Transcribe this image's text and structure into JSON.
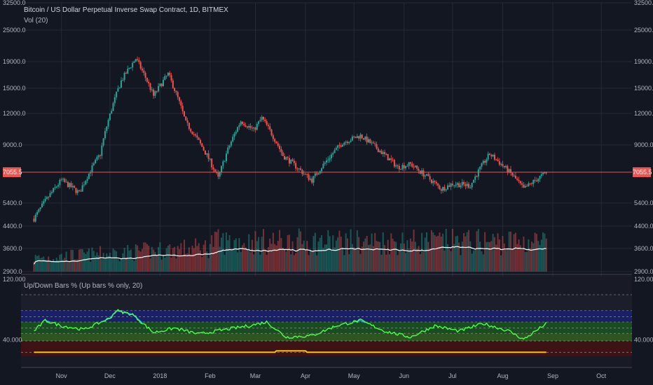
{
  "header": {
    "title": "Bitcoin / US Dollar Perpetual Inverse Swap Contract, 1D, BITMEX",
    "volume_label": "Vol (20)",
    "indicator_label": "Up/Down Bars % (Up bars % only, 20)"
  },
  "current_price": "7055.5",
  "price_axis": {
    "labels": [
      "32500.0",
      "25000.0",
      "19000.0",
      "15000.0",
      "12000.0",
      "9000.0",
      "5400.0",
      "4400.0",
      "3600.0",
      "2900.0"
    ],
    "values": [
      32500,
      25000,
      19000,
      15000,
      12000,
      9000,
      5400,
      4400,
      3600,
      2900
    ]
  },
  "indicator_axis": {
    "labels": [
      "120.000",
      "40.000"
    ],
    "values": [
      120,
      40
    ]
  },
  "time_axis": {
    "labels": [
      "Nov",
      "Dec",
      "2018",
      "Feb",
      "Mar",
      "Apr",
      "May",
      "Jun",
      "Jul",
      "Aug",
      "Sep",
      "Oct"
    ]
  },
  "colors": {
    "background": "#131722",
    "grid": "#252a37",
    "up": "#26a69a",
    "down": "#ef5350",
    "price_line": "#ef5350",
    "volume_ma": "#ffffff",
    "indicator_line_green": "#4cff4c",
    "indicator_line_blue": "#29b6f6",
    "band_blue": "#1a237e",
    "band_green": "#1b5e20",
    "band_olive": "#33691e",
    "band_red": "#4a1212",
    "yellow_line": "#ffc107"
  },
  "chart_data": [
    {
      "type": "candlestick",
      "title": "Bitcoin / US Dollar Perpetual Inverse Swap Contract, 1D, BITMEX",
      "scale": "log",
      "ylim": [
        2900,
        32500
      ],
      "key_points": [
        {
          "date": "2017-10-15",
          "close": 4700
        },
        {
          "date": "2017-11-01",
          "close": 6600
        },
        {
          "date": "2017-11-12",
          "close": 5900
        },
        {
          "date": "2017-11-25",
          "close": 8300
        },
        {
          "date": "2017-12-08",
          "close": 16000
        },
        {
          "date": "2017-12-17",
          "close": 19500
        },
        {
          "date": "2017-12-28",
          "close": 14000
        },
        {
          "date": "2018-01-06",
          "close": 17000
        },
        {
          "date": "2018-01-17",
          "close": 11000
        },
        {
          "date": "2018-02-06",
          "close": 6700
        },
        {
          "date": "2018-02-20",
          "close": 11200
        },
        {
          "date": "2018-02-28",
          "close": 10300
        },
        {
          "date": "2018-03-05",
          "close": 11500
        },
        {
          "date": "2018-03-18",
          "close": 8200
        },
        {
          "date": "2018-04-01",
          "close": 6900
        },
        {
          "date": "2018-04-05",
          "close": 6600
        },
        {
          "date": "2018-04-24",
          "close": 9200
        },
        {
          "date": "2018-05-05",
          "close": 9800
        },
        {
          "date": "2018-05-28",
          "close": 7400
        },
        {
          "date": "2018-06-05",
          "close": 7600
        },
        {
          "date": "2018-06-24",
          "close": 6100
        },
        {
          "date": "2018-07-01",
          "close": 6400
        },
        {
          "date": "2018-07-12",
          "close": 6300
        },
        {
          "date": "2018-07-24",
          "close": 8300
        },
        {
          "date": "2018-08-07",
          "close": 6900
        },
        {
          "date": "2018-08-14",
          "close": 6100
        },
        {
          "date": "2018-08-28",
          "close": 7055.5
        }
      ]
    },
    {
      "type": "bar",
      "series_name": "Vol (20)",
      "description": "volume bars with white 20-period moving average; average rises from low levels to a peak near late March, flat through spring, rising again in July/August"
    },
    {
      "type": "line",
      "title": "Up/Down Bars % (Up bars % only, 20)",
      "ylim": [
        0,
        120
      ],
      "bands": [
        {
          "from": 60,
          "to": 75,
          "color": "band_blue"
        },
        {
          "from": 45,
          "to": 60,
          "color": "band_green"
        },
        {
          "from": 35,
          "to": 45,
          "color": "band_olive"
        },
        {
          "from": 15,
          "to": 35,
          "color": "band_red"
        }
      ],
      "key_points": [
        {
          "date": "2017-10-15",
          "value": 48
        },
        {
          "date": "2017-10-22",
          "value": 62
        },
        {
          "date": "2017-11-01",
          "value": 55
        },
        {
          "date": "2017-11-15",
          "value": 50
        },
        {
          "date": "2017-12-01",
          "value": 65
        },
        {
          "date": "2017-12-05",
          "value": 75
        },
        {
          "date": "2017-12-15",
          "value": 70
        },
        {
          "date": "2017-12-28",
          "value": 46
        },
        {
          "date": "2018-01-10",
          "value": 52
        },
        {
          "date": "2018-01-25",
          "value": 44
        },
        {
          "date": "2018-02-10",
          "value": 50
        },
        {
          "date": "2018-02-25",
          "value": 55
        },
        {
          "date": "2018-03-08",
          "value": 60
        },
        {
          "date": "2018-03-20",
          "value": 40
        },
        {
          "date": "2018-04-05",
          "value": 42
        },
        {
          "date": "2018-04-20",
          "value": 55
        },
        {
          "date": "2018-05-05",
          "value": 62
        },
        {
          "date": "2018-05-20",
          "value": 48
        },
        {
          "date": "2018-06-05",
          "value": 40
        },
        {
          "date": "2018-06-20",
          "value": 55
        },
        {
          "date": "2018-07-05",
          "value": 48
        },
        {
          "date": "2018-07-20",
          "value": 58
        },
        {
          "date": "2018-08-05",
          "value": 48
        },
        {
          "date": "2018-08-14",
          "value": 37
        },
        {
          "date": "2018-08-28",
          "value": 58
        }
      ],
      "yellow_line": {
        "value": 20,
        "bump_value": 22,
        "bump_from": "2018-03-14",
        "bump_to": "2018-04-01"
      }
    }
  ]
}
